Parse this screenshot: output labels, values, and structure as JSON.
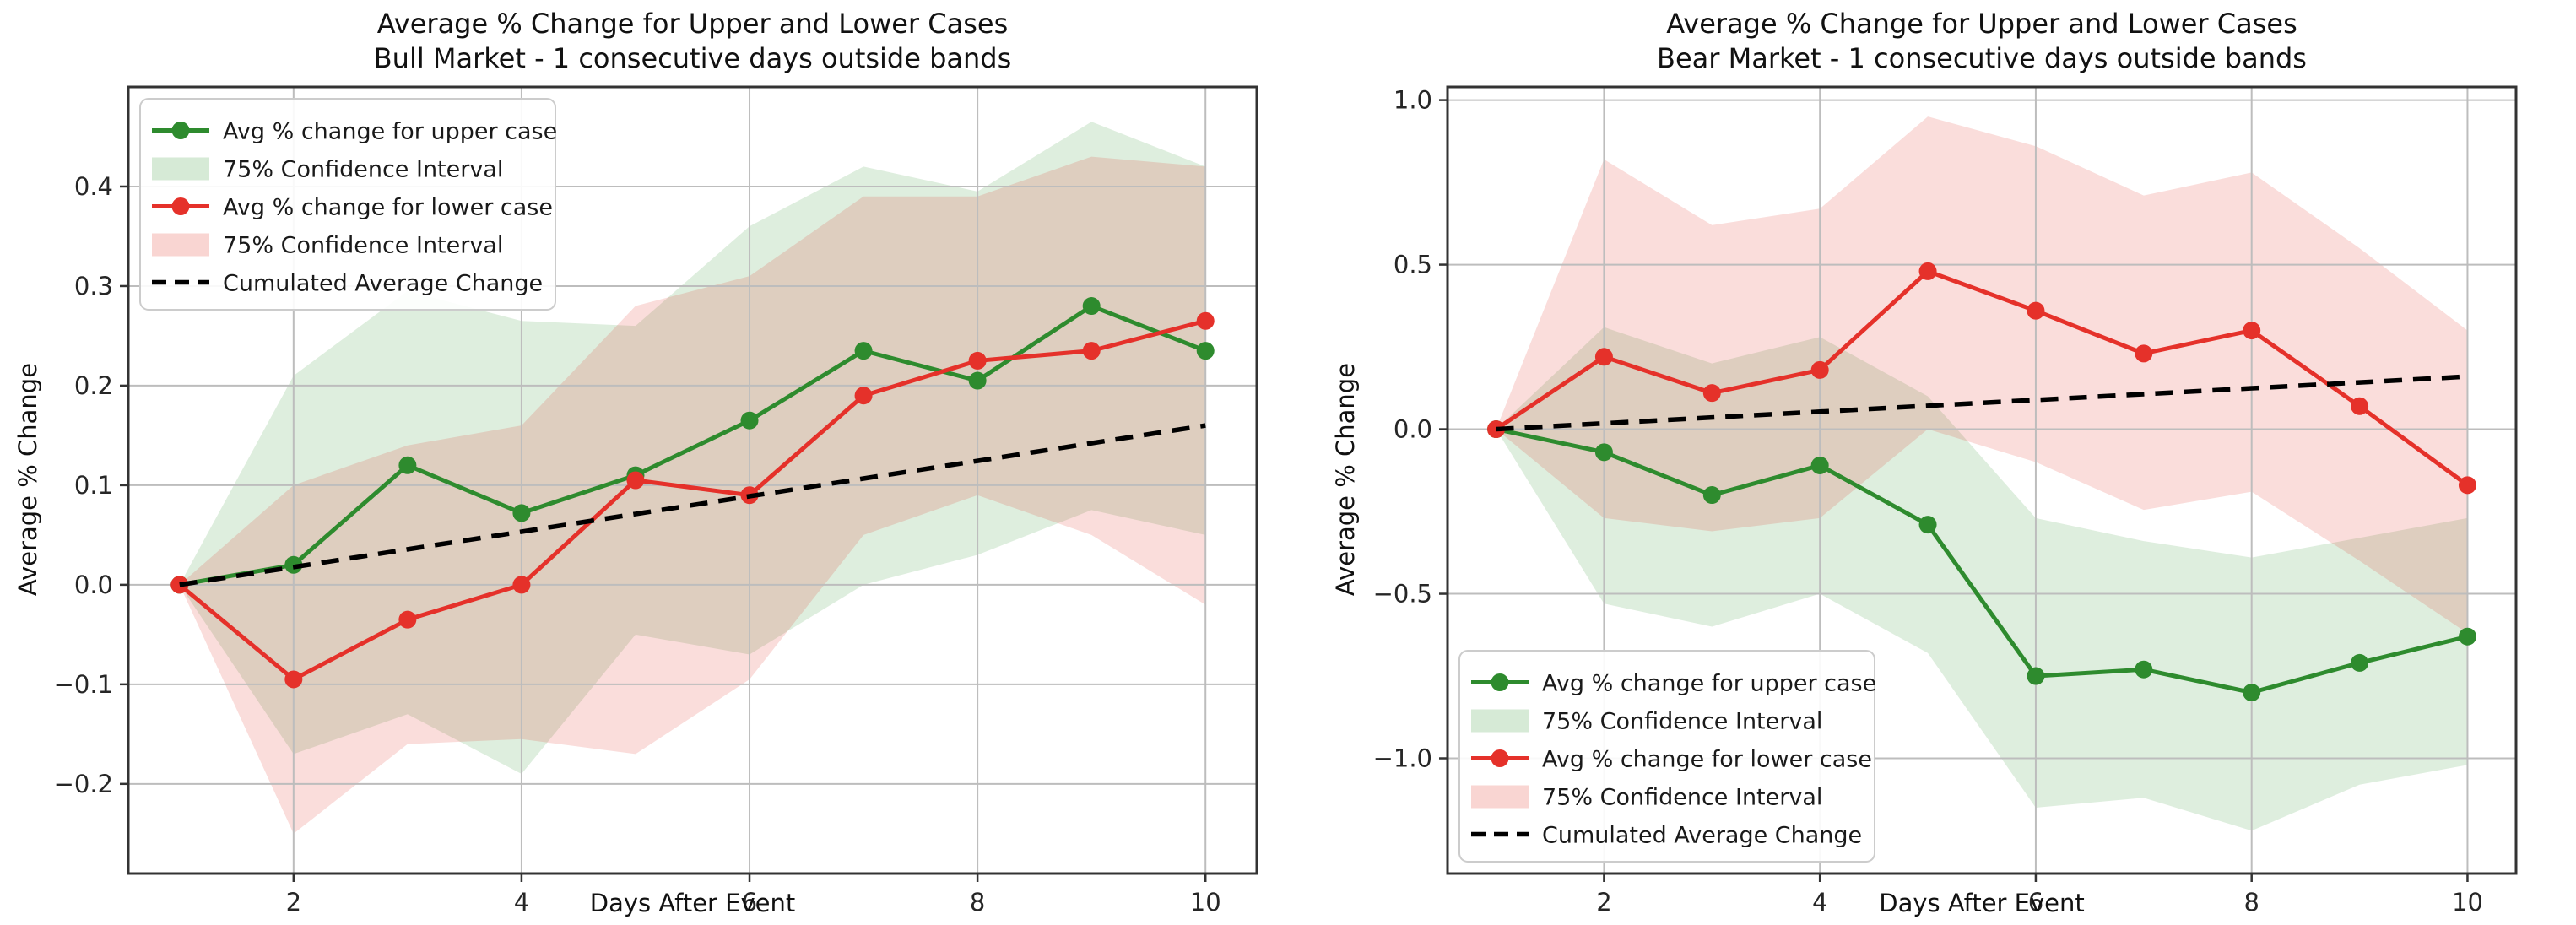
{
  "chart_data": [
    {
      "type": "line",
      "title": "Average % Change for Upper and Lower Cases",
      "subtitle": "Bull Market - 1 consecutive days outside bands",
      "xlabel": "Days After Event",
      "ylabel": "Average % Change",
      "x": [
        1,
        2,
        3,
        4,
        5,
        6,
        7,
        8,
        9,
        10
      ],
      "xticks": [
        2,
        4,
        6,
        8,
        10
      ],
      "yticks": [
        0.4,
        0.3,
        0.2,
        0.1,
        0.0,
        -0.1,
        -0.2
      ],
      "ytick_labels": [
        "0.4",
        "0.3",
        "0.2",
        "0.1",
        "0.0",
        "−0.1",
        "−0.2"
      ],
      "xlim": [
        0.55,
        10.45
      ],
      "ylim": [
        -0.29,
        0.5
      ],
      "grid": true,
      "legend_position": "upper-left",
      "series": [
        {
          "id": "upper-case-line",
          "name": "Avg % change for upper case",
          "type": "line",
          "color": "#2e8b2e",
          "values": [
            0,
            0.02,
            0.12,
            0.072,
            0.11,
            0.165,
            0.235,
            0.205,
            0.28,
            0.235
          ]
        },
        {
          "id": "upper-case-ci-band",
          "name": "75% Confidence Interval",
          "type": "band",
          "color": "#46a046",
          "opacity": 0.18,
          "upper": [
            0,
            0.21,
            0.295,
            0.265,
            0.26,
            0.36,
            0.42,
            0.395,
            0.465,
            0.42
          ],
          "lower": [
            0,
            -0.17,
            -0.13,
            -0.19,
            -0.05,
            -0.07,
            0.0,
            0.03,
            0.075,
            0.05
          ]
        },
        {
          "id": "lower-case-line",
          "name": "Avg % change for lower case",
          "type": "line",
          "color": "#e5312a",
          "values": [
            0,
            -0.095,
            -0.035,
            0.0,
            0.105,
            0.09,
            0.19,
            0.225,
            0.235,
            0.265
          ]
        },
        {
          "id": "lower-case-ci-band",
          "name": "75% Confidence Interval",
          "type": "band",
          "color": "#e02c20",
          "opacity": 0.16,
          "upper": [
            0,
            0.1,
            0.14,
            0.16,
            0.28,
            0.31,
            0.39,
            0.39,
            0.43,
            0.42
          ],
          "lower": [
            0,
            -0.25,
            -0.16,
            -0.155,
            -0.17,
            -0.095,
            0.05,
            0.09,
            0.05,
            -0.02
          ]
        },
        {
          "id": "cumulated-average-line",
          "name": "Cumulated Average Change",
          "type": "dashed",
          "color": "#000000",
          "values": [
            0,
            0.0178,
            0.0356,
            0.0533,
            0.0711,
            0.0889,
            0.1067,
            0.1244,
            0.1422,
            0.16
          ]
        }
      ]
    },
    {
      "type": "line",
      "title": "Average % Change for Upper and Lower Cases",
      "subtitle": "Bear Market - 1 consecutive days outside bands",
      "xlabel": "Days After Event",
      "ylabel": "Average % Change",
      "x": [
        1,
        2,
        3,
        4,
        5,
        6,
        7,
        8,
        9,
        10
      ],
      "xticks": [
        2,
        4,
        6,
        8,
        10
      ],
      "yticks": [
        1.0,
        0.5,
        0.0,
        -0.5,
        -1.0
      ],
      "ytick_labels": [
        "1.0",
        "0.5",
        "0.0",
        "−0.5",
        "−1.0"
      ],
      "xlim": [
        0.55,
        10.45
      ],
      "ylim": [
        -1.35,
        1.04
      ],
      "grid": true,
      "legend_position": "lower-left",
      "series": [
        {
          "id": "upper-case-line",
          "name": "Avg % change for upper case",
          "type": "line",
          "color": "#2e8b2e",
          "values": [
            0,
            -0.07,
            -0.2,
            -0.11,
            -0.29,
            -0.75,
            -0.73,
            -0.8,
            -0.71,
            -0.63
          ]
        },
        {
          "id": "upper-case-ci-band",
          "name": "75% Confidence Interval",
          "type": "band",
          "color": "#46a046",
          "opacity": 0.18,
          "upper": [
            0,
            0.31,
            0.2,
            0.28,
            0.1,
            -0.27,
            -0.34,
            -0.39,
            -0.33,
            -0.27
          ],
          "lower": [
            0,
            -0.53,
            -0.6,
            -0.5,
            -0.68,
            -1.15,
            -1.12,
            -1.22,
            -1.08,
            -1.02
          ]
        },
        {
          "id": "lower-case-line",
          "name": "Avg % change for lower case",
          "type": "line",
          "color": "#e5312a",
          "values": [
            0,
            0.22,
            0.11,
            0.18,
            0.48,
            0.36,
            0.23,
            0.3,
            0.07,
            -0.17
          ]
        },
        {
          "id": "lower-case-ci-band",
          "name": "75% Confidence Interval",
          "type": "band",
          "color": "#e02c20",
          "opacity": 0.16,
          "upper": [
            0,
            0.82,
            0.62,
            0.67,
            0.95,
            0.86,
            0.71,
            0.78,
            0.55,
            0.3
          ],
          "lower": [
            0,
            -0.27,
            -0.31,
            -0.27,
            0.0,
            -0.1,
            -0.245,
            -0.19,
            -0.4,
            -0.62
          ]
        },
        {
          "id": "cumulated-average-line",
          "name": "Cumulated Average Change",
          "type": "dashed",
          "color": "#000000",
          "values": [
            0,
            0.0178,
            0.0356,
            0.0533,
            0.0711,
            0.0889,
            0.1067,
            0.1244,
            0.1422,
            0.16
          ]
        }
      ]
    }
  ],
  "style_colors": {
    "grid": "#bdbdbd",
    "spine": "#333333",
    "tick_text": "#262626",
    "legend_border": "#cccccc",
    "legend_bg": "#ffffff"
  }
}
